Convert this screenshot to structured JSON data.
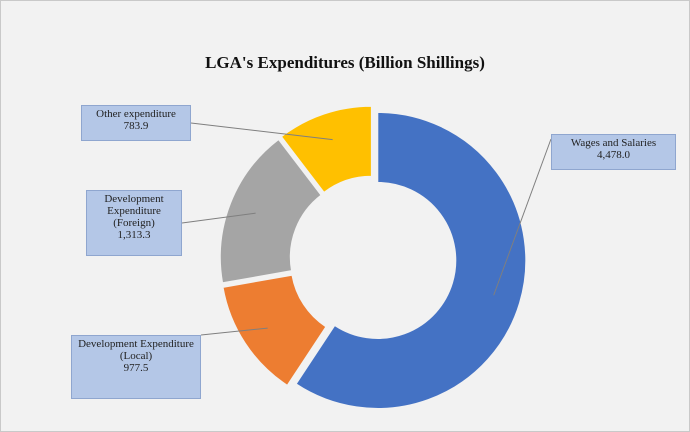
{
  "chart_data": {
    "type": "donut",
    "title": "LGA's Expenditures (Billion Shillings)",
    "categories": [
      "Wages and Salaries",
      "Development Expenditure (Local)",
      "Development Expenditure (Foreign)",
      "Other expenditure"
    ],
    "values": [
      4478.0,
      977.5,
      1313.3,
      783.9
    ],
    "value_labels": [
      "4,478.0",
      "977.5",
      "1,313.3",
      "783.9"
    ],
    "colors": [
      "#4472c4",
      "#ed7d31",
      "#a5a5a5",
      "#ffc000"
    ]
  }
}
